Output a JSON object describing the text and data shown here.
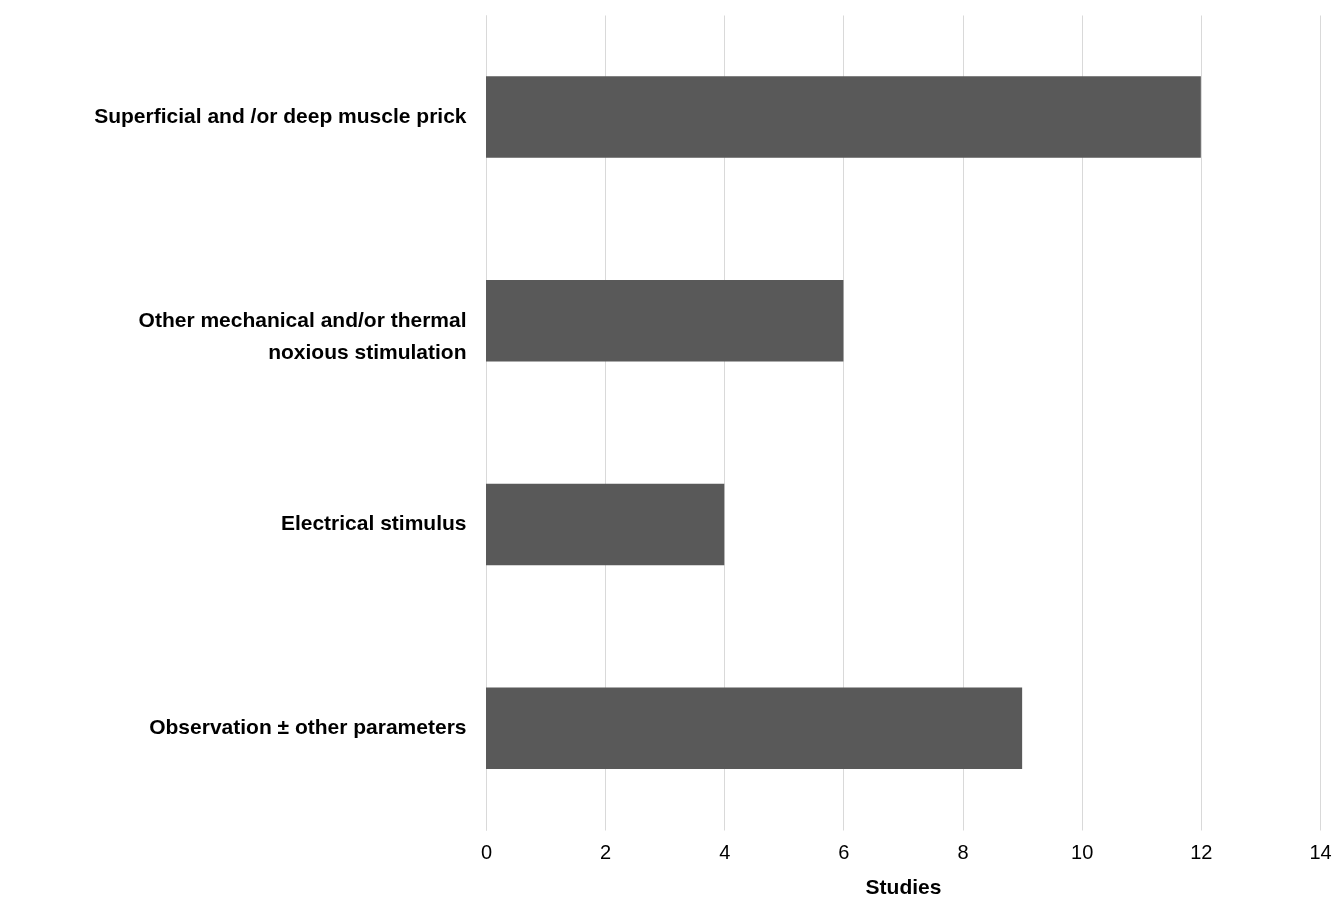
{
  "chart_data": {
    "type": "bar",
    "orientation": "horizontal",
    "xlabel": "Studies",
    "categories": [
      "Superficial and /or deep muscle prick",
      "Other mechanical and/or thermal noxious stimulation",
      "Electrical stimulus",
      "Observation ± other parameters"
    ],
    "values": [
      12,
      6,
      4,
      9
    ],
    "color": "#595959",
    "xlim": [
      0,
      14
    ],
    "xticks": [
      0,
      2,
      4,
      6,
      8,
      10,
      12,
      14
    ],
    "grid": "x"
  }
}
